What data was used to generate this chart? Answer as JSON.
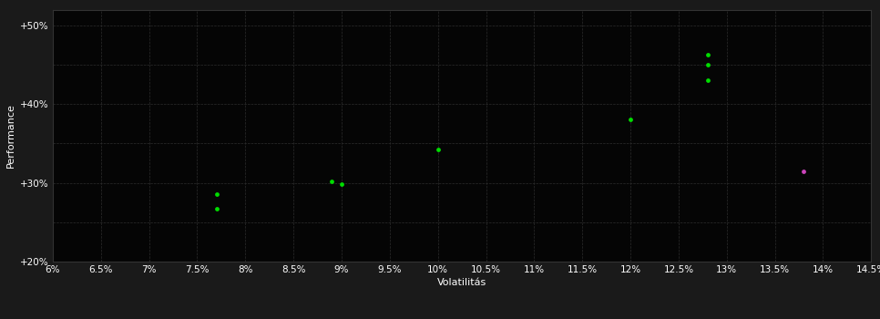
{
  "background_color": "#1a1a1a",
  "grid_color": "#2d2d2d",
  "plot_bg_color": "#050505",
  "xlabel": "Volatilitás",
  "ylabel": "Performance",
  "xlim": [
    0.06,
    0.145
  ],
  "ylim": [
    0.2,
    0.52
  ],
  "xticks": [
    0.06,
    0.065,
    0.07,
    0.075,
    0.08,
    0.085,
    0.09,
    0.095,
    0.1,
    0.105,
    0.11,
    0.115,
    0.12,
    0.125,
    0.13,
    0.135,
    0.14,
    0.145
  ],
  "xtick_labels": [
    "6%",
    "6.5%",
    "7%",
    "7.5%",
    "8%",
    "8.5%",
    "9%",
    "9.5%",
    "10%",
    "10.5%",
    "11%",
    "11.5%",
    "12%",
    "12.5%",
    "13%",
    "13.5%",
    "14%",
    "14.5%"
  ],
  "yticks": [
    0.2,
    0.25,
    0.3,
    0.35,
    0.4,
    0.45,
    0.5
  ],
  "ytick_labels": [
    "+20%",
    "",
    "+30%",
    "",
    "+40%",
    "",
    "+50%"
  ],
  "green_points": [
    [
      0.077,
      0.286
    ],
    [
      0.077,
      0.267
    ],
    [
      0.089,
      0.302
    ],
    [
      0.09,
      0.298
    ],
    [
      0.1,
      0.342
    ],
    [
      0.12,
      0.381
    ],
    [
      0.128,
      0.463
    ],
    [
      0.128,
      0.45
    ],
    [
      0.128,
      0.43
    ]
  ],
  "magenta_points": [
    [
      0.138,
      0.315
    ]
  ],
  "green_color": "#00dd00",
  "magenta_color": "#cc44bb",
  "dot_size": 12,
  "axis_label_fontsize": 8,
  "tick_fontsize": 7.5
}
